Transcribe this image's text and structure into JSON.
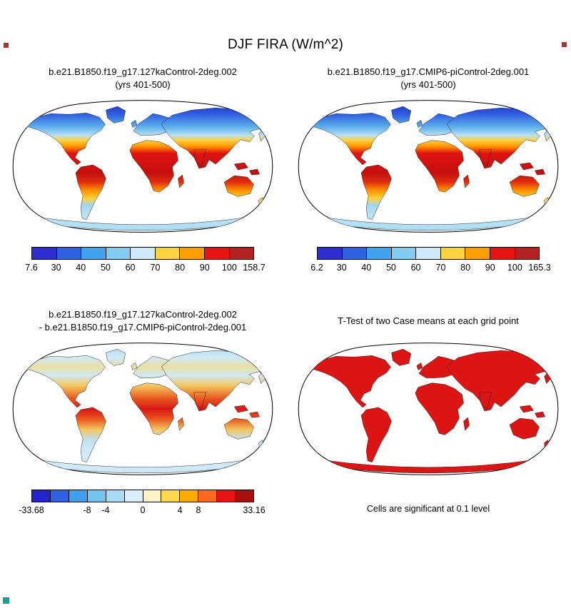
{
  "title": "DJF FIRA (W/m^2)",
  "panels": [
    {
      "name": "127kaControl",
      "title_lines": [
        "b.e21.B1850.f19_g17.127kaControl-2deg.002",
        "(yrs 401-500)"
      ],
      "colorbar": {
        "colors": [
          "#2d2dd2",
          "#2f62e3",
          "#41a3ec",
          "#83ccf3",
          "#cfeafa",
          "#ffd23f",
          "#ffa000",
          "#e81414",
          "#b22222"
        ],
        "labels": [
          "7.6",
          "30",
          "40",
          "50",
          "60",
          "70",
          "80",
          "90",
          "100",
          "158.7"
        ],
        "fractions": [
          0,
          0.111,
          0.222,
          0.333,
          0.444,
          0.556,
          0.667,
          0.778,
          0.889,
          1
        ]
      }
    },
    {
      "name": "piControl",
      "title_lines": [
        "b.e21.B1850.f19_g17.CMIP6-piControl-2deg.001",
        "(yrs 401-500)"
      ],
      "colorbar": {
        "colors": [
          "#2d2dd2",
          "#2f62e3",
          "#41a3ec",
          "#83ccf3",
          "#cfeafa",
          "#ffd23f",
          "#ffa000",
          "#e81414",
          "#b22222"
        ],
        "labels": [
          "6.2",
          "30",
          "40",
          "50",
          "60",
          "70",
          "80",
          "90",
          "100",
          "165.3"
        ],
        "fractions": [
          0,
          0.111,
          0.222,
          0.333,
          0.444,
          0.556,
          0.667,
          0.778,
          0.889,
          1
        ]
      }
    },
    {
      "name": "difference",
      "title_lines": [
        "b.e21.B1850.f19_g17.127kaControl-2deg.002",
        "- b.e21.B1850.f19_g17.CMIP6-piControl-2deg.001"
      ],
      "colorbar": {
        "colors": [
          "#2323cd",
          "#2f62e3",
          "#3fa0ec",
          "#72c5f1",
          "#a8dcf6",
          "#d9eefb",
          "#fdf3c6",
          "#ffd84d",
          "#ffaa00",
          "#ff6a1e",
          "#e81414",
          "#a81010"
        ],
        "labels": [
          "-33.68",
          "-8",
          "-4",
          "0",
          "4",
          "8",
          "33.16"
        ],
        "fractions": [
          0,
          0.25,
          0.333,
          0.5,
          0.667,
          0.75,
          1
        ]
      }
    },
    {
      "name": "ttest",
      "title_lines": [
        "T-Test of two Case means at each grid point"
      ],
      "caption": "Cells are significant at 0.1 level",
      "map_color": "#dd1414"
    }
  ],
  "decorations": {
    "corner_marks": [
      {
        "position": "top-left",
        "color": "#b03030"
      },
      {
        "position": "top-right",
        "color": "#b03030"
      },
      {
        "position": "bottom-left",
        "color": "#1f9e8e"
      }
    ]
  },
  "chart_data": [
    {
      "type": "heatmap",
      "title": "b.e21.B1850.f19_g17.127kaControl-2deg.002 (yrs 401-500)",
      "variable": "DJF FIRA",
      "units": "W/m^2",
      "projection": "robinson",
      "min": 7.6,
      "max": 158.7,
      "levels": [
        30,
        40,
        50,
        60,
        70,
        80,
        90,
        100
      ],
      "legend_position": "bottom"
    },
    {
      "type": "heatmap",
      "title": "b.e21.B1850.f19_g17.CMIP6-piControl-2deg.001 (yrs 401-500)",
      "variable": "DJF FIRA",
      "units": "W/m^2",
      "projection": "robinson",
      "min": 6.2,
      "max": 165.3,
      "levels": [
        30,
        40,
        50,
        60,
        70,
        80,
        90,
        100
      ],
      "legend_position": "bottom"
    },
    {
      "type": "heatmap",
      "title": "b.e21.B1850.f19_g17.127kaControl-2deg.002 - b.e21.B1850.f19_g17.CMIP6-piControl-2deg.001",
      "variable": "DJF FIRA difference",
      "units": "W/m^2",
      "projection": "robinson",
      "min": -33.68,
      "max": 33.16,
      "levels": [
        -8,
        -4,
        0,
        4,
        8
      ],
      "legend_position": "bottom"
    },
    {
      "type": "heatmap",
      "title": "T-Test of two Case means at each grid point",
      "projection": "robinson",
      "note": "Cells are significant at 0.1 level",
      "significant_color": "#dd1414"
    }
  ]
}
